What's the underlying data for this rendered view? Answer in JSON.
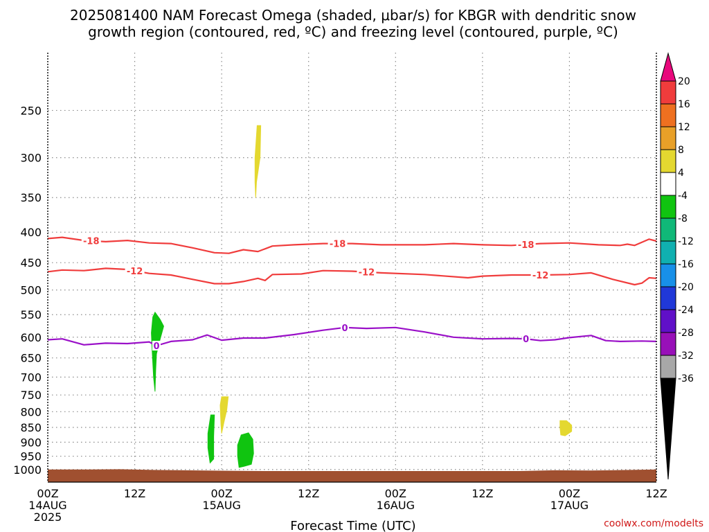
{
  "chart_data": {
    "type": "heatmap",
    "title_line1": "2025081400 NAM Forecast Omega (shaded, μbar/s) for KBGR with dendritic snow",
    "title_line2": "growth region (contoured, red, ºC) and freezing level (contoured, purple, ºC)",
    "xlabel": "Forecast Time (UTC)",
    "ylabel": "",
    "x_unit": "hours from 2025081400",
    "xlim": [
      0,
      84
    ],
    "ylim": [
      1050,
      200
    ],
    "y_scale": "log",
    "y_ticks": [
      250,
      300,
      350,
      400,
      450,
      500,
      550,
      600,
      650,
      700,
      750,
      800,
      850,
      900,
      950,
      1000
    ],
    "x_ticks": [
      {
        "hour": 0,
        "lines": [
          "00Z",
          "14AUG",
          "2025"
        ]
      },
      {
        "hour": 12,
        "lines": [
          "12Z"
        ]
      },
      {
        "hour": 24,
        "lines": [
          "00Z",
          "15AUG"
        ]
      },
      {
        "hour": 36,
        "lines": [
          "12Z"
        ]
      },
      {
        "hour": 48,
        "lines": [
          "00Z",
          "16AUG"
        ]
      },
      {
        "hour": 60,
        "lines": [
          "12Z"
        ]
      },
      {
        "hour": 72,
        "lines": [
          "00Z",
          "17AUG"
        ]
      },
      {
        "hour": 84,
        "lines": [
          "12Z"
        ]
      }
    ],
    "grid": true,
    "colorbar": {
      "labels": [
        "20",
        "16",
        "12",
        "8",
        "4",
        "-4",
        "-8",
        "-12",
        "-16",
        "-20",
        "-24",
        "-28",
        "-32",
        "-36"
      ],
      "top_arrow_color": "#e8087c",
      "bottom_arrow_color": "#000000",
      "colors": [
        "#f03c3c",
        "#ee7020",
        "#e8a028",
        "#e4d830",
        "#ffffff",
        "#10c410",
        "#10b878",
        "#10b0b0",
        "#1890e8",
        "#2038d8",
        "#6010c8",
        "#9810b8",
        "#a8a8a8"
      ]
    },
    "contours": [
      {
        "label": "-18",
        "color": "#f03c3c",
        "label_hours": [
          6,
          40,
          66
        ],
        "points": [
          [
            0,
            410
          ],
          [
            2,
            408
          ],
          [
            5,
            413
          ],
          [
            8,
            415
          ],
          [
            11,
            413
          ],
          [
            14,
            417
          ],
          [
            17,
            418
          ],
          [
            20,
            425
          ],
          [
            23,
            433
          ],
          [
            25,
            434
          ],
          [
            27,
            428
          ],
          [
            29,
            431
          ],
          [
            31,
            422
          ],
          [
            34,
            420
          ],
          [
            38,
            418
          ],
          [
            42,
            418
          ],
          [
            46,
            420
          ],
          [
            52,
            420
          ],
          [
            56,
            418
          ],
          [
            60,
            420
          ],
          [
            64,
            421
          ],
          [
            68,
            418
          ],
          [
            72,
            417
          ],
          [
            76,
            420
          ],
          [
            79,
            421
          ],
          [
            80,
            419
          ],
          [
            81,
            421
          ],
          [
            83,
            411
          ],
          [
            84,
            414
          ]
        ]
      },
      {
        "label": "-12",
        "color": "#f03c3c",
        "label_hours": [
          12,
          44,
          68
        ],
        "points": [
          [
            0,
            466
          ],
          [
            2,
            463
          ],
          [
            5,
            464
          ],
          [
            8,
            460
          ],
          [
            11,
            462
          ],
          [
            14,
            469
          ],
          [
            17,
            472
          ],
          [
            20,
            480
          ],
          [
            23,
            488
          ],
          [
            25,
            488
          ],
          [
            27,
            484
          ],
          [
            29,
            478
          ],
          [
            30,
            482
          ],
          [
            31,
            471
          ],
          [
            35,
            470
          ],
          [
            38,
            464
          ],
          [
            42,
            465
          ],
          [
            46,
            468
          ],
          [
            52,
            471
          ],
          [
            58,
            477
          ],
          [
            60,
            474
          ],
          [
            64,
            472
          ],
          [
            68,
            472
          ],
          [
            72,
            471
          ],
          [
            75,
            468
          ],
          [
            78,
            480
          ],
          [
            81,
            490
          ],
          [
            82,
            487
          ],
          [
            83,
            477
          ],
          [
            84,
            478
          ]
        ]
      },
      {
        "label": "0",
        "color": "#9a10c8",
        "label_hours": [
          15,
          41,
          66
        ],
        "points": [
          [
            0,
            606
          ],
          [
            2,
            604
          ],
          [
            5,
            618
          ],
          [
            8,
            614
          ],
          [
            11,
            615
          ],
          [
            14,
            611
          ],
          [
            15,
            620
          ],
          [
            17,
            610
          ],
          [
            20,
            606
          ],
          [
            22,
            595
          ],
          [
            24,
            607
          ],
          [
            27,
            602
          ],
          [
            30,
            602
          ],
          [
            34,
            594
          ],
          [
            38,
            584
          ],
          [
            41,
            578
          ],
          [
            44,
            580
          ],
          [
            48,
            578
          ],
          [
            52,
            588
          ],
          [
            56,
            600
          ],
          [
            60,
            604
          ],
          [
            64,
            603
          ],
          [
            66,
            604
          ],
          [
            68,
            608
          ],
          [
            70,
            606
          ],
          [
            72,
            601
          ],
          [
            75,
            596
          ],
          [
            77,
            608
          ],
          [
            79,
            610
          ],
          [
            82,
            609
          ],
          [
            84,
            610
          ]
        ]
      }
    ],
    "shaded_regions": [
      {
        "color": "#e4d830",
        "points": [
          [
            28.9,
            265
          ],
          [
            29.4,
            265
          ],
          [
            29.3,
            300
          ],
          [
            28.8,
            330
          ],
          [
            28.7,
            350
          ],
          [
            28.6,
            330
          ],
          [
            28.6,
            300
          ]
        ]
      },
      {
        "color": "#10c410",
        "points": [
          [
            14.8,
            545
          ],
          [
            15.5,
            560
          ],
          [
            16.0,
            575
          ],
          [
            15.5,
            605
          ],
          [
            15.0,
            640
          ],
          [
            14.9,
            680
          ],
          [
            14.8,
            740
          ],
          [
            14.6,
            700
          ],
          [
            14.4,
            630
          ],
          [
            14.3,
            590
          ],
          [
            14.5,
            555
          ]
        ]
      },
      {
        "color": "#e4d830",
        "points": [
          [
            24.0,
            755
          ],
          [
            24.9,
            755
          ],
          [
            24.7,
            795
          ],
          [
            24.3,
            835
          ],
          [
            24.0,
            870
          ],
          [
            23.9,
            840
          ],
          [
            23.8,
            780
          ]
        ]
      },
      {
        "color": "#10c410",
        "points": [
          [
            22.5,
            810
          ],
          [
            23.0,
            810
          ],
          [
            22.9,
            880
          ],
          [
            22.9,
            960
          ],
          [
            22.4,
            975
          ],
          [
            22.1,
            920
          ],
          [
            22.1,
            870
          ]
        ]
      },
      {
        "color": "#10c410",
        "points": [
          [
            26.7,
            875
          ],
          [
            27.7,
            868
          ],
          [
            28.3,
            890
          ],
          [
            28.4,
            940
          ],
          [
            28.1,
            980
          ],
          [
            27.1,
            988
          ],
          [
            26.4,
            992
          ],
          [
            26.2,
            950
          ],
          [
            26.2,
            910
          ]
        ]
      },
      {
        "color": "#e4d830",
        "points": [
          [
            70.7,
            828
          ],
          [
            71.6,
            828
          ],
          [
            72.3,
            843
          ],
          [
            72.3,
            863
          ],
          [
            71.4,
            878
          ],
          [
            70.8,
            875
          ],
          [
            70.7,
            850
          ]
        ]
      }
    ],
    "surface": {
      "color": "#a05030",
      "points": [
        [
          0,
          1000
        ],
        [
          5,
          1000
        ],
        [
          10,
          999
        ],
        [
          15,
          1002
        ],
        [
          25,
          1005
        ],
        [
          30,
          1006
        ],
        [
          65,
          1006
        ],
        [
          70,
          1003
        ],
        [
          75,
          1004
        ],
        [
          84,
          1000
        ]
      ]
    }
  },
  "credit": "coolwx.com/modelts"
}
